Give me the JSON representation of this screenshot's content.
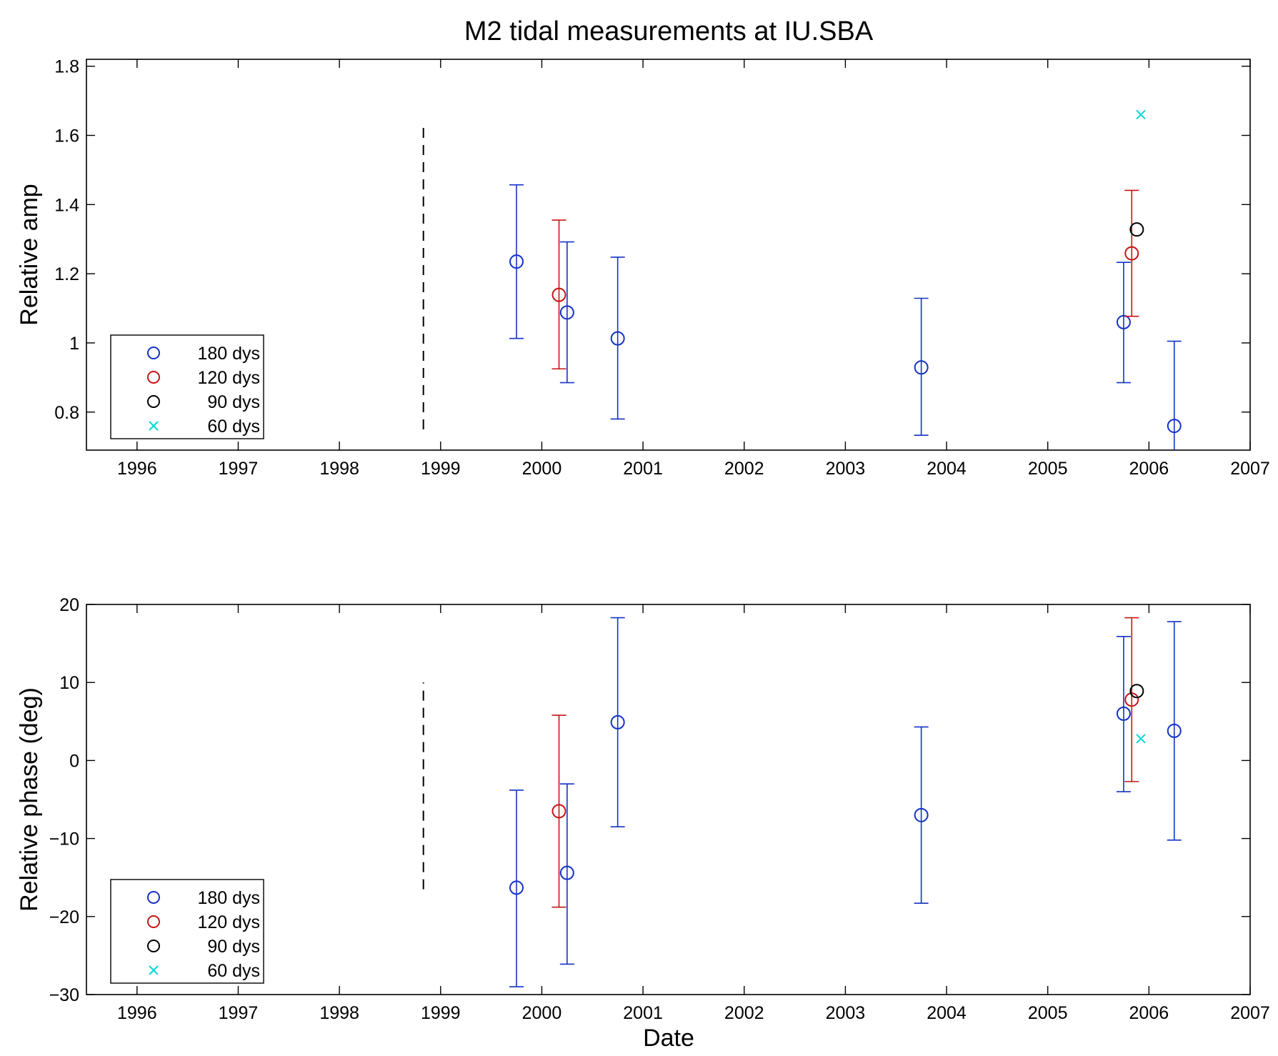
{
  "figure": {
    "title": "M2 tidal measurements at IU.SBA",
    "xlabel": "Date"
  },
  "chart_data": [
    {
      "type": "scatter",
      "ylabel": "Relative amp",
      "x_ticks": [
        "1996",
        "1997",
        "1998",
        "1999",
        "2000",
        "2001",
        "2002",
        "2003",
        "2004",
        "2005",
        "2006",
        "2007"
      ],
      "y_ticks": [
        0.8,
        1,
        1.2,
        1.4,
        1.6,
        1.8
      ],
      "y_tick_labels": [
        "0.8",
        "1",
        "1.2",
        "1.4",
        "1.6",
        "1.8"
      ],
      "xlim": [
        1995.5,
        2007
      ],
      "ylim": [
        0.69,
        1.82
      ],
      "grid": false,
      "legend_position": "bottom-left",
      "reference_line": {
        "x": 1998.83,
        "y_range": [
          0.75,
          1.63
        ],
        "style": "dashed",
        "color": "#000000"
      },
      "series": [
        {
          "name": "180 dys",
          "marker": "circle",
          "color": "#1432c8",
          "points": [
            {
              "x": 1999.75,
              "y": 1.235,
              "lo": 1.013,
              "hi": 1.457
            },
            {
              "x": 2000.25,
              "y": 1.088,
              "lo": 0.885,
              "hi": 1.292
            },
            {
              "x": 2000.75,
              "y": 1.013,
              "lo": 0.78,
              "hi": 1.248
            },
            {
              "x": 2003.75,
              "y": 0.929,
              "lo": 0.733,
              "hi": 1.129
            },
            {
              "x": 2005.75,
              "y": 1.06,
              "lo": 0.885,
              "hi": 1.233
            },
            {
              "x": 2006.25,
              "y": 0.76,
              "lo": 0.6,
              "hi": 1.005
            }
          ]
        },
        {
          "name": "120 dys",
          "marker": "circle",
          "color": "#c81414",
          "points": [
            {
              "x": 2000.17,
              "y": 1.139,
              "lo": 0.925,
              "hi": 1.355
            },
            {
              "x": 2005.83,
              "y": 1.259,
              "lo": 1.077,
              "hi": 1.441
            }
          ]
        },
        {
          "name": "90 dys",
          "marker": "circle",
          "color": "#000000",
          "points": [
            {
              "x": 2005.88,
              "y": 1.328
            }
          ]
        },
        {
          "name": "60 dys",
          "marker": "x",
          "color": "#00d8d8",
          "points": [
            {
              "x": 2005.92,
              "y": 1.66
            }
          ]
        }
      ]
    },
    {
      "type": "scatter",
      "ylabel": "Relative phase (deg)",
      "x_ticks": [
        "1996",
        "1997",
        "1998",
        "1999",
        "2000",
        "2001",
        "2002",
        "2003",
        "2004",
        "2005",
        "2006",
        "2007"
      ],
      "y_ticks": [
        -30,
        -20,
        -10,
        0,
        10,
        20
      ],
      "y_tick_labels": [
        "−30",
        "−20",
        "−10",
        "0",
        "10",
        "20"
      ],
      "xlim": [
        1995.5,
        2007
      ],
      "ylim": [
        -30,
        20
      ],
      "grid": false,
      "legend_position": "bottom-left",
      "reference_line": {
        "x": 1998.83,
        "y_range": [
          -16.5,
          10
        ],
        "style": "dashed",
        "color": "#000000"
      },
      "series": [
        {
          "name": "180 dys",
          "marker": "circle",
          "color": "#1432c8",
          "points": [
            {
              "x": 1999.75,
              "y": -16.3,
              "lo": -29,
              "hi": -3.8
            },
            {
              "x": 2000.25,
              "y": -14.4,
              "lo": -26.1,
              "hi": -3
            },
            {
              "x": 2000.75,
              "y": 4.9,
              "lo": -8.5,
              "hi": 18.3
            },
            {
              "x": 2003.75,
              "y": -7,
              "lo": -18.3,
              "hi": 4.3
            },
            {
              "x": 2005.75,
              "y": 6,
              "lo": -4,
              "hi": 15.9
            },
            {
              "x": 2006.25,
              "y": 3.8,
              "lo": -10.2,
              "hi": 17.8
            }
          ]
        },
        {
          "name": "120 dys",
          "marker": "circle",
          "color": "#c81414",
          "points": [
            {
              "x": 2000.17,
              "y": -6.5,
              "lo": -18.8,
              "hi": 5.8
            },
            {
              "x": 2005.83,
              "y": 7.8,
              "lo": -2.7,
              "hi": 18.3
            }
          ]
        },
        {
          "name": "90 dys",
          "marker": "circle",
          "color": "#000000",
          "points": [
            {
              "x": 2005.88,
              "y": 8.9
            }
          ]
        },
        {
          "name": "60 dys",
          "marker": "x",
          "color": "#00d8d8",
          "points": [
            {
              "x": 2005.92,
              "y": 2.8
            }
          ]
        }
      ]
    }
  ]
}
